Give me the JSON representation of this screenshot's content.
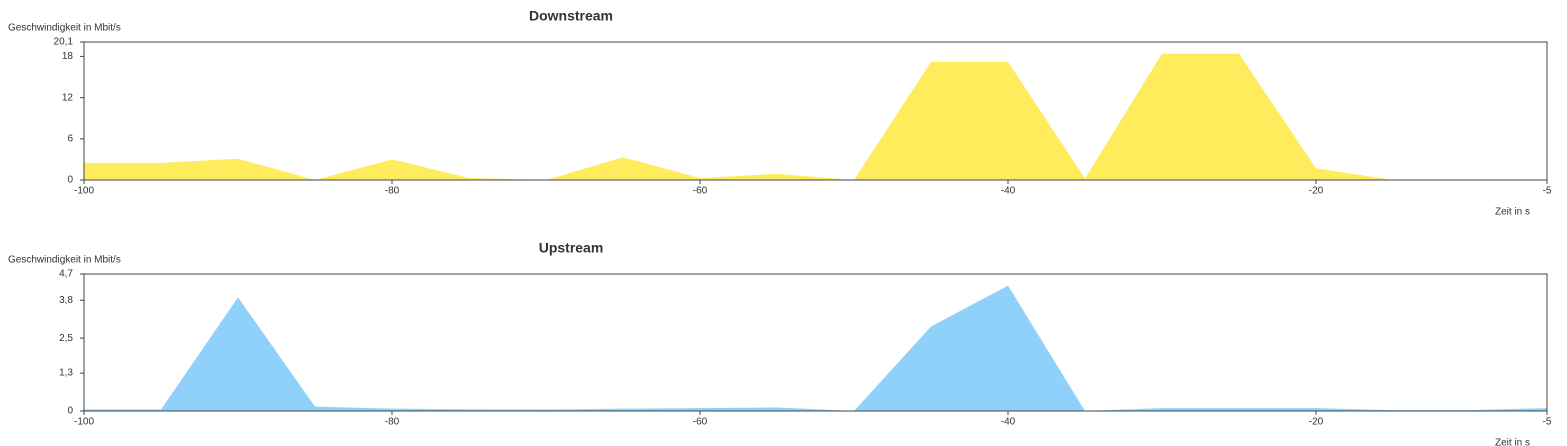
{
  "chart_data": [
    {
      "type": "area",
      "title": "Downstream",
      "ylabel": "Geschwindigkeit in Mbit/s",
      "xlabel": "Zeit in s",
      "x": [
        -100,
        -95,
        -90,
        -85,
        -80,
        -75,
        -70,
        -65,
        -60,
        -55,
        -50,
        -45,
        -40,
        -35,
        -30,
        -25,
        -20,
        -15,
        -10,
        -5
      ],
      "values": [
        2.5,
        2.5,
        3.1,
        0,
        3.0,
        0.3,
        0,
        3.3,
        0.3,
        0.9,
        0,
        17.2,
        17.2,
        0.2,
        18.4,
        18.4,
        1.7,
        0,
        0,
        0
      ],
      "color": "#ffec5c",
      "xlim": [
        -100,
        -5
      ],
      "xticks": [
        -100,
        -80,
        -60,
        -40,
        -20,
        -5
      ],
      "ylim": [
        0,
        20.1
      ],
      "yticks": [
        0,
        6,
        12,
        18,
        {
          "value": 20.1,
          "label": "20,1"
        }
      ]
    },
    {
      "type": "area",
      "title": "Upstream",
      "ylabel": "Geschwindigkeit in Mbit/s",
      "xlabel": "Zeit in s",
      "x": [
        -100,
        -95,
        -90,
        -85,
        -80,
        -75,
        -70,
        -65,
        -60,
        -55,
        -50,
        -45,
        -40,
        -35,
        -30,
        -25,
        -20,
        -15,
        -10,
        -5
      ],
      "values": [
        0.05,
        0.05,
        3.9,
        0.15,
        0.08,
        0.06,
        0.05,
        0.08,
        0.1,
        0.12,
        0,
        2.9,
        4.3,
        0,
        0.1,
        0.1,
        0.1,
        0.03,
        0.03,
        0.1
      ],
      "color": "#8fd1fb",
      "xlim": [
        -100,
        -5
      ],
      "xticks": [
        -100,
        -80,
        -60,
        -40,
        -20,
        -5
      ],
      "ylim": [
        0,
        4.7
      ],
      "yticks": [
        0,
        {
          "value": 1.3,
          "label": "1,3"
        },
        {
          "value": 2.5,
          "label": "2,5"
        },
        {
          "value": 3.8,
          "label": "3,8"
        },
        {
          "value": 4.7,
          "label": "4,7"
        }
      ]
    }
  ]
}
